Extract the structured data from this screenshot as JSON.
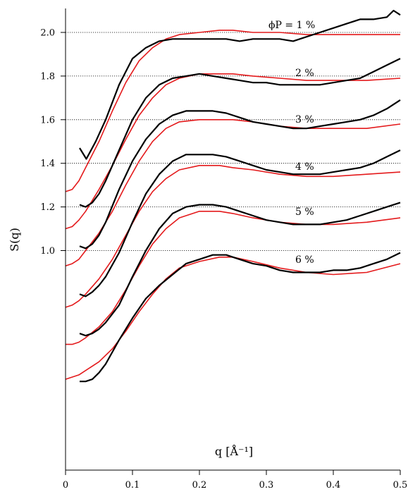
{
  "chart_data": {
    "type": "line",
    "title": "",
    "xlabel": "q [Å⁻¹]",
    "ylabel": "S(q)",
    "xlim": [
      0,
      0.5
    ],
    "ylim": [
      0.0,
      2.1
    ],
    "x_ticks": [
      "0",
      "0.1",
      "0.2",
      "0.3",
      "0.4",
      "0.5"
    ],
    "y_ticks": [
      "1.0",
      "1.2",
      "1.4",
      "1.6",
      "1.8",
      "2.0"
    ],
    "reference_lines": [
      2.0,
      1.8,
      1.6,
      1.4,
      1.2,
      1.0
    ],
    "grid": "dotted horizontal reference lines at each curve's baseline",
    "colors": {
      "experiment": "#000000",
      "model": "#e41a1c"
    },
    "series": [
      {
        "label": "ϕP = 1 %",
        "offset": 1.0,
        "experiment": {
          "x": [
            0.021,
            0.031,
            0.045,
            0.06,
            0.08,
            0.1,
            0.12,
            0.14,
            0.16,
            0.18,
            0.2,
            0.22,
            0.24,
            0.26,
            0.28,
            0.3,
            0.32,
            0.34,
            0.36,
            0.38,
            0.4,
            0.42,
            0.44,
            0.46,
            0.48,
            0.49,
            0.5
          ],
          "y": [
            1.47,
            1.42,
            1.5,
            1.6,
            1.76,
            1.88,
            1.93,
            1.96,
            1.97,
            1.97,
            1.97,
            1.97,
            1.97,
            1.96,
            1.97,
            1.97,
            1.97,
            1.96,
            1.98,
            2.0,
            2.02,
            2.04,
            2.06,
            2.06,
            2.07,
            2.1,
            2.08
          ]
        },
        "model": {
          "x": [
            0.0,
            0.01,
            0.02,
            0.03,
            0.05,
            0.07,
            0.09,
            0.11,
            0.13,
            0.15,
            0.17,
            0.2,
            0.23,
            0.25,
            0.28,
            0.32,
            0.36,
            0.4,
            0.45,
            0.5
          ],
          "y": [
            1.27,
            1.28,
            1.32,
            1.38,
            1.5,
            1.64,
            1.77,
            1.87,
            1.93,
            1.97,
            1.99,
            2.0,
            2.01,
            2.01,
            2.0,
            2.0,
            1.99,
            1.99,
            1.99,
            1.99
          ]
        }
      },
      {
        "label": "2 %",
        "offset": 0.8,
        "experiment": {
          "x": [
            0.021,
            0.03,
            0.04,
            0.05,
            0.06,
            0.08,
            0.1,
            0.12,
            0.14,
            0.16,
            0.18,
            0.2,
            0.22,
            0.24,
            0.26,
            0.28,
            0.3,
            0.32,
            0.34,
            0.36,
            0.38,
            0.4,
            0.42,
            0.44,
            0.46,
            0.48,
            0.5
          ],
          "y": [
            1.21,
            1.2,
            1.22,
            1.26,
            1.32,
            1.46,
            1.6,
            1.7,
            1.76,
            1.79,
            1.8,
            1.81,
            1.8,
            1.79,
            1.78,
            1.77,
            1.77,
            1.76,
            1.76,
            1.76,
            1.76,
            1.77,
            1.78,
            1.79,
            1.82,
            1.85,
            1.88
          ]
        },
        "model": {
          "x": [
            0.0,
            0.01,
            0.02,
            0.03,
            0.05,
            0.07,
            0.09,
            0.11,
            0.13,
            0.15,
            0.17,
            0.2,
            0.23,
            0.25,
            0.28,
            0.32,
            0.36,
            0.4,
            0.45,
            0.5
          ],
          "y": [
            1.1,
            1.11,
            1.14,
            1.18,
            1.28,
            1.39,
            1.51,
            1.62,
            1.7,
            1.76,
            1.79,
            1.81,
            1.81,
            1.81,
            1.8,
            1.79,
            1.78,
            1.78,
            1.78,
            1.79
          ]
        }
      },
      {
        "label": "3 %",
        "offset": 0.6,
        "experiment": {
          "x": [
            0.021,
            0.03,
            0.04,
            0.05,
            0.06,
            0.08,
            0.1,
            0.12,
            0.14,
            0.16,
            0.18,
            0.2,
            0.22,
            0.24,
            0.26,
            0.28,
            0.3,
            0.32,
            0.34,
            0.36,
            0.38,
            0.4,
            0.42,
            0.44,
            0.46,
            0.48,
            0.5
          ],
          "y": [
            1.02,
            1.01,
            1.03,
            1.07,
            1.13,
            1.28,
            1.41,
            1.51,
            1.58,
            1.62,
            1.64,
            1.64,
            1.64,
            1.63,
            1.61,
            1.59,
            1.58,
            1.57,
            1.56,
            1.56,
            1.57,
            1.58,
            1.59,
            1.6,
            1.62,
            1.65,
            1.69
          ]
        },
        "model": {
          "x": [
            0.0,
            0.01,
            0.02,
            0.03,
            0.05,
            0.07,
            0.09,
            0.11,
            0.13,
            0.15,
            0.17,
            0.2,
            0.23,
            0.25,
            0.28,
            0.32,
            0.36,
            0.4,
            0.45,
            0.5
          ],
          "y": [
            0.93,
            0.94,
            0.96,
            1.0,
            1.08,
            1.18,
            1.3,
            1.41,
            1.5,
            1.56,
            1.59,
            1.6,
            1.6,
            1.6,
            1.59,
            1.57,
            1.56,
            1.56,
            1.56,
            1.58
          ]
        }
      },
      {
        "label": "4 %",
        "offset": 0.4,
        "experiment": {
          "x": [
            0.021,
            0.03,
            0.04,
            0.05,
            0.06,
            0.08,
            0.1,
            0.12,
            0.14,
            0.16,
            0.18,
            0.2,
            0.22,
            0.24,
            0.26,
            0.28,
            0.3,
            0.32,
            0.34,
            0.36,
            0.38,
            0.4,
            0.42,
            0.44,
            0.46,
            0.48,
            0.5
          ],
          "y": [
            0.8,
            0.79,
            0.81,
            0.84,
            0.88,
            0.99,
            1.13,
            1.26,
            1.35,
            1.41,
            1.44,
            1.44,
            1.44,
            1.43,
            1.41,
            1.39,
            1.37,
            1.36,
            1.35,
            1.35,
            1.35,
            1.36,
            1.37,
            1.38,
            1.4,
            1.43,
            1.46
          ]
        },
        "model": {
          "x": [
            0.0,
            0.01,
            0.02,
            0.03,
            0.05,
            0.07,
            0.09,
            0.11,
            0.13,
            0.15,
            0.17,
            0.2,
            0.23,
            0.25,
            0.28,
            0.32,
            0.36,
            0.4,
            0.45,
            0.5
          ],
          "y": [
            0.74,
            0.75,
            0.77,
            0.8,
            0.87,
            0.96,
            1.07,
            1.18,
            1.27,
            1.33,
            1.37,
            1.39,
            1.39,
            1.38,
            1.37,
            1.35,
            1.34,
            1.34,
            1.35,
            1.36
          ]
        }
      },
      {
        "label": "5 %",
        "offset": 0.2,
        "experiment": {
          "x": [
            0.021,
            0.03,
            0.04,
            0.05,
            0.06,
            0.08,
            0.1,
            0.12,
            0.14,
            0.16,
            0.18,
            0.2,
            0.22,
            0.24,
            0.26,
            0.28,
            0.3,
            0.32,
            0.34,
            0.36,
            0.38,
            0.4,
            0.42,
            0.44,
            0.46,
            0.48,
            0.5
          ],
          "y": [
            0.62,
            0.61,
            0.62,
            0.64,
            0.67,
            0.75,
            0.88,
            1.0,
            1.1,
            1.17,
            1.2,
            1.21,
            1.21,
            1.2,
            1.18,
            1.16,
            1.14,
            1.13,
            1.12,
            1.12,
            1.12,
            1.13,
            1.14,
            1.16,
            1.18,
            1.2,
            1.22
          ]
        },
        "model": {
          "x": [
            0.0,
            0.01,
            0.02,
            0.03,
            0.05,
            0.07,
            0.09,
            0.11,
            0.13,
            0.15,
            0.17,
            0.2,
            0.23,
            0.25,
            0.28,
            0.32,
            0.36,
            0.4,
            0.45,
            0.5
          ],
          "y": [
            0.57,
            0.57,
            0.58,
            0.6,
            0.65,
            0.72,
            0.82,
            0.93,
            1.03,
            1.1,
            1.15,
            1.18,
            1.18,
            1.17,
            1.15,
            1.13,
            1.12,
            1.12,
            1.13,
            1.15
          ]
        }
      },
      {
        "label": "6 %",
        "offset": 0.0,
        "experiment": {
          "x": [
            0.021,
            0.03,
            0.04,
            0.05,
            0.06,
            0.08,
            0.1,
            0.12,
            0.14,
            0.16,
            0.18,
            0.2,
            0.22,
            0.24,
            0.26,
            0.28,
            0.3,
            0.32,
            0.34,
            0.36,
            0.38,
            0.4,
            0.42,
            0.44,
            0.46,
            0.48,
            0.5
          ],
          "y": [
            0.4,
            0.4,
            0.41,
            0.44,
            0.48,
            0.59,
            0.69,
            0.78,
            0.84,
            0.89,
            0.94,
            0.96,
            0.98,
            0.98,
            0.96,
            0.94,
            0.93,
            0.91,
            0.9,
            0.9,
            0.9,
            0.91,
            0.91,
            0.92,
            0.94,
            0.96,
            0.99
          ]
        },
        "model": {
          "x": [
            0.0,
            0.01,
            0.02,
            0.03,
            0.05,
            0.07,
            0.09,
            0.11,
            0.13,
            0.15,
            0.17,
            0.2,
            0.23,
            0.25,
            0.28,
            0.32,
            0.36,
            0.4,
            0.45,
            0.5
          ],
          "y": [
            0.41,
            0.42,
            0.43,
            0.45,
            0.49,
            0.55,
            0.63,
            0.72,
            0.8,
            0.87,
            0.92,
            0.95,
            0.97,
            0.97,
            0.95,
            0.92,
            0.9,
            0.89,
            0.9,
            0.94
          ]
        }
      }
    ]
  }
}
